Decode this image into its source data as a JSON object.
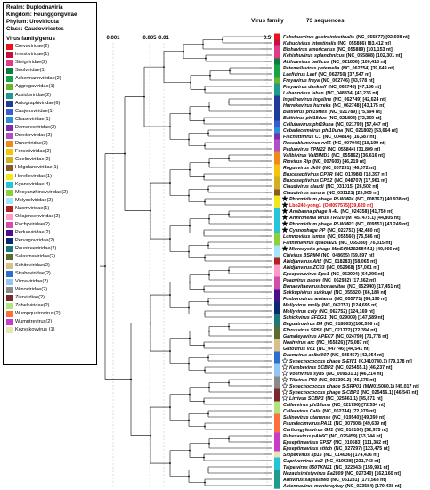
{
  "header": {
    "realm": "Realm: Duplodnaviria",
    "kingdom": "Kingdom: Heunggongvirae",
    "phylum": "Phylum: Uroviricota",
    "class": "Class: Caudoviricetes",
    "virus_family_genus": "Virus family/genus",
    "virus_family_col": "Virus family",
    "sequences_col": "73 sequences"
  },
  "scale_labels": [
    "0.001",
    "0.005",
    "0.01",
    "0.5"
  ],
  "legend": [
    {
      "label": "Crevaviridae(2)",
      "color": "#e8151b"
    },
    {
      "label": "Intestiviridae(1)",
      "color": "#c70e3c"
    },
    {
      "label": "Steigviridae(2)",
      "color": "#e03a8a"
    },
    {
      "label": "Soolviridae(1)",
      "color": "#0d7c3c"
    },
    {
      "label": "Ackermannviridae(2)",
      "color": "#16a34a"
    },
    {
      "label": "Aggregaviridae(1)",
      "color": "#6ab42f"
    },
    {
      "label": "Assiduviridae(2)",
      "color": "#1c9b8e"
    },
    {
      "label": "Autographiviridae(6)",
      "color": "#1f3c9b"
    },
    {
      "label": "Casjensviridae(1)",
      "color": "#3b5ad6"
    },
    {
      "label": "Chaseviridae(1)",
      "color": "#2a8fd6"
    },
    {
      "label": "Demerecviridae(2)",
      "color": "#7b2fb0"
    },
    {
      "label": "Drexlerviridae(2)",
      "color": "#b04fc8"
    },
    {
      "label": "Duneviridae(2)",
      "color": "#f08a1a"
    },
    {
      "label": "Forsetiviridae(2)",
      "color": "#f5c40f"
    },
    {
      "label": "Guelinviridae(2)",
      "color": "#d1b21e"
    },
    {
      "label": "Helgolandviridae(1)",
      "color": "#8b5a2b"
    },
    {
      "label": "Herelleviridae(1)",
      "color": "#f2e61c"
    },
    {
      "label": "Kyanoviridae(4)",
      "color": "#25c4d9"
    },
    {
      "label": "Mesyanzhinovviridae(2)",
      "color": "#8fcf3c"
    },
    {
      "label": "Molycolviridae(2)",
      "color": "#a3e4ff"
    },
    {
      "label": "Naomviridae(1)",
      "color": "#b22222"
    },
    {
      "label": "Orlajensenviridae(2)",
      "color": "#ff9ac8"
    },
    {
      "label": "Pachyviridae(2)",
      "color": "#d14fa8"
    },
    {
      "label": "Peduoviridae(2)",
      "color": "#4b0f8c"
    },
    {
      "label": "Pervagoviridae(2)",
      "color": "#0b2b6e"
    },
    {
      "label": "Rountreeviridae(2)",
      "color": "#1a7a7a"
    },
    {
      "label": "Salasmaviridae(2)",
      "color": "#5c6b2e"
    },
    {
      "label": "Schitoviridae(2)",
      "color": "#d9c08a"
    },
    {
      "label": "Straboviridae(2)",
      "color": "#2d6fd1"
    },
    {
      "label": "Vilmaviridae(2)",
      "color": "#93c5f5"
    },
    {
      "label": "Winoviridae(2)",
      "color": "#8a8a8a"
    },
    {
      "label": "Ziervirdiae(2)",
      "color": "#7a2a2a"
    },
    {
      "label": "Zobellviridae(2)",
      "color": "#b0e57c"
    },
    {
      "label": "Wumpquatrovirus(2)",
      "color": "#ff6f3c"
    },
    {
      "label": "Wumptrevirus(2)",
      "color": "#c83cc8"
    },
    {
      "label": "Kozyakovvirus (1)",
      "color": "#e6e6b0"
    }
  ],
  "tips": [
    {
      "name": "Fohxhuevirus gastrointestinalis",
      "acc": "(NC_055877) [92,608 nt]",
      "color": "#e8151b"
    },
    {
      "name": "Kahucivirus intestinalis",
      "acc": "(NC_055886) [83,412 nt]",
      "color": "#c70e3c"
    },
    {
      "name": "Blohavirus americanus",
      "acc": "(NC_055889) [101,153 nt]",
      "color": "#e03a8a"
    },
    {
      "name": "Kehishuvirus splanchnicus",
      "acc": "(NC_055888) [102,301 nt]",
      "color": "#e03a8a"
    },
    {
      "name": "Akihdevirus balticus",
      "acc": "(NC_021806) [100,418 nt]",
      "color": "#0d7c3c"
    },
    {
      "name": "Petemellavirus petemella",
      "acc": "(NC_062754) [39,649 nt]",
      "color": "#16a34a"
    },
    {
      "name": "Leefivirus Leef",
      "acc": "(NC_062750) [37,547 nt]",
      "color": "#16a34a"
    },
    {
      "name": "Freyavirus freya",
      "acc": "(NC_062746) [43,978 nt]",
      "color": "#6ab42f"
    },
    {
      "name": "Freyavirus dankleff",
      "acc": "(NC_062745) [47,186 nt]",
      "color": "#1c9b8e"
    },
    {
      "name": "Labanrvirus laban",
      "acc": "(NC_048834) [43,236 nt]",
      "color": "#1c9b8e"
    },
    {
      "name": "Ingelinevirus ingeline",
      "acc": "(NC_062749) [42,624 nt]",
      "color": "#1f3c9b"
    },
    {
      "name": "Hurrekevirus hurreka",
      "acc": "(NC_062748) [43,175 nt]",
      "color": "#1f3c9b"
    },
    {
      "name": "Baltivirus phi19rtes",
      "acc": "(NC_021789) [75,994 nt]",
      "color": "#1f3c9b"
    },
    {
      "name": "Baltivirus phi18dus",
      "acc": "(NC_021803) [72,369 nt]",
      "color": "#1f3c9b"
    },
    {
      "name": "Cellubavirus phi19una",
      "acc": "(NC_021799) [57,447 nt]",
      "color": "#3b5ad6"
    },
    {
      "name": "Cebadecemvirus phi10una",
      "acc": "(NC_021802) [53,664 nt]",
      "color": "#2a8fd6"
    },
    {
      "name": "Fischettivirus C1",
      "acc": "(NC_004814) [16,687 nt]",
      "color": "#7b2fb0"
    },
    {
      "name": "Rosenblumvirus rv66",
      "acc": "(NC_007046) [18,199 nt]",
      "color": "#b04fc8"
    },
    {
      "name": "Peduovirus YPM22",
      "acc": "(NC_055844) [31,809 nt]",
      "color": "#b04fc8"
    },
    {
      "name": "Vallbivirus ValBIMD1",
      "acc": "(NC_055862) [36,616 nt]",
      "color": "#f08a1a"
    },
    {
      "name": "Ripvirus Rip",
      "acc": "(NC_007603) [46,219 nt]",
      "color": "#f08a1a"
    },
    {
      "name": "Roguevirus Jk06",
      "acc": "(NC_007291) [46,072 nt]",
      "color": "#f5c40f"
    },
    {
      "name": "Bruceseptivirus CP7R",
      "acc": "(NC_017980) [18,397 nt]",
      "color": "#f5c40f"
    },
    {
      "name": "Bruceseptivirus CPS2",
      "acc": "(NC_048707) [17,961 nt]",
      "color": "#d1b21e"
    },
    {
      "name": "Claudivirus claudi",
      "acc": "(NC_031015) [26,502 nt]",
      "color": "#d1b21e"
    },
    {
      "name": "Claudivirus aurora",
      "acc": "(NC_031121) [25,905 nt]",
      "color": "#8b5a2b"
    },
    {
      "name": "Phormidium phage Pf-WMP4",
      "acc": "(NC_008367) [40,938 nt]",
      "color": "#f2e61c",
      "star": "filled"
    },
    {
      "name": "Lbo240-yong1",
      "acc": "(OM097575)[39,620 nt]",
      "color": "#f2e61c",
      "star": "filled",
      "red": true
    },
    {
      "name": "Anabaena phage A-4L",
      "acc": "(NC_024358) [41,750 nt]",
      "color": "#25c4d9",
      "star": "filled"
    },
    {
      "name": "Arthronema virus TR020",
      "acc": "(MT457475.1) [44,805 nt]",
      "color": "#25c4d9",
      "star": "filled"
    },
    {
      "name": "Phormidium phage Pf-WMP3",
      "acc": "(NC_009551) [43,249 nt]",
      "color": "#25c4d9",
      "star": "filled"
    },
    {
      "name": "Cyanophage PP",
      "acc": "(NC_022751) [42,480 nt]",
      "color": "#25c4d9",
      "star": "filled"
    },
    {
      "name": "Lumnovirus lumos",
      "acc": "(NC_055560) [75,586 nt]",
      "color": "#8fcf3c"
    },
    {
      "name": "Faithunavirus quaolai20",
      "acc": "(NC_055380) [76,315 nt]",
      "color": "#8fcf3c"
    },
    {
      "name": "Microcystis phage MinSt(MZ925844.1)",
      "acc": "[49,966 nt]",
      "color": "#a3e4ff",
      "star": "filled"
    },
    {
      "name": "Chivirus BSPM4",
      "acc": "(NC_048655) [59,897 nt]",
      "color": "#a3e4ff"
    },
    {
      "name": "Abidjanvirus Alt2",
      "acc": "(NC_018283) [58,065 nt]",
      "color": "#b22222"
    },
    {
      "name": "Abidjanvirus ZC03",
      "acc": "(NC_052968) [57,061 nt]",
      "color": "#ff9ac8"
    },
    {
      "name": "Epsepenavirus Eps1",
      "acc": "(NC_052904) [64,096 nt]",
      "color": "#ff9ac8"
    },
    {
      "name": "Poagvirus paove",
      "acc": "(NC_052932) [17,362 nt]",
      "color": "#d14fa8"
    },
    {
      "name": "Bonaevitaevirus bonaevitae",
      "acc": "(NC_052940) [17,451 nt]",
      "color": "#d14fa8"
    },
    {
      "name": "Sukkupivirus sukkupi",
      "acc": "(NC_055820) [66,184 nt]",
      "color": "#4b0f8c"
    },
    {
      "name": "Foxborovirus amiamu",
      "acc": "(NC_055771) [68,190 nt]",
      "color": "#4b0f8c"
    },
    {
      "name": "Mollyvirus molly",
      "acc": "(NC_062751) [124,695 nt]",
      "color": "#0b2b6e"
    },
    {
      "name": "Mollyvirus coly",
      "acc": "(NC_062752) [124,169 nt]",
      "color": "#0b2b6e"
    },
    {
      "name": "Schickvirus EFDG1",
      "acc": "(NC_029009) [147,589 nt]",
      "color": "#1a7a7a"
    },
    {
      "name": "Beguatrovirus B4",
      "acc": "(NC_018863) [162,596 nt]",
      "color": "#1a7a7a"
    },
    {
      "name": "Elbrusvirus SP58",
      "acc": "(NC_021772) [72,394 nt]",
      "color": "#5c6b2e"
    },
    {
      "name": "Gamaleyavirus APEC7",
      "acc": "(NC_024790) [71,778 nt]",
      "color": "#5c6b2e"
    },
    {
      "name": "Noahvirus arc",
      "acc": "(NC_055826) [75,087 nt]",
      "color": "#d9c08a"
    },
    {
      "name": "Gutovirus Vc1",
      "acc": "(NC_047746) [44,541 nt]",
      "color": "#d9c08a"
    },
    {
      "name": "Daemvirus aclbd007",
      "acc": "(NC_025457) [42,054 nt]",
      "color": "#2d6fd1"
    },
    {
      "name": "Synechococcus phage S-EIV1",
      "acc": "(KJ410740.1) [79,178 nt]",
      "color": "#2d6fd1",
      "star": "open"
    },
    {
      "name": "Kembevirus SCBP2",
      "acc": "(NC_025455.1) [46,237 nt]",
      "color": "#93c5f5",
      "star": "open"
    },
    {
      "name": "Voerivirus syn5",
      "acc": "(NC_009531.1) [46,214 nt]",
      "color": "#93c5f5",
      "star": "open"
    },
    {
      "name": "Tiilvirus P60",
      "acc": "(NC_003390.2) [46,675 nt]",
      "color": "#8a8a8a",
      "star": "open"
    },
    {
      "name": "Synechococcus phage S-SRP01",
      "acc": "(MW015080.1) [45,017 nt]",
      "color": "#8a8a8a",
      "star": "open"
    },
    {
      "name": "Synechococcus phage S-CBP1",
      "acc": "(NC_025456.1) [46,547 nt]",
      "color": "#7a2a2a",
      "star": "open"
    },
    {
      "name": "Lirrivus SCBP3",
      "acc": "(NC_025461.1) [45,871 nt]",
      "color": "#7a2a2a",
      "star": "open"
    },
    {
      "name": "Calleevirus phi18una",
      "acc": "(NC_021796) [72,534 nt]",
      "color": "#b0e57c"
    },
    {
      "name": "Calleevirus Calle",
      "acc": "(NC_062744) [72,979 nt]",
      "color": "#b0e57c"
    },
    {
      "name": "Salinovirus utanense",
      "acc": "(NC_019540) [49,390 nt]",
      "color": "#ff6f3c"
    },
    {
      "name": "Paundecimvirus PA11",
      "acc": "(NC_007808) [49,639 nt]",
      "color": "#ff6f3c"
    },
    {
      "name": "Carltongylesvirus GJ1",
      "acc": "(NC_010106) [52,975 nt]",
      "color": "#ff6f3c"
    },
    {
      "name": "Pahexavirus pAh6C",
      "acc": "(NC_025459) [53,744 nt]",
      "color": "#c83cc8"
    },
    {
      "name": "Epseptimavirus EPS7",
      "acc": "(NC_010583) [111,382 nt]",
      "color": "#c83cc8"
    },
    {
      "name": "Epseptimavirus stitch",
      "acc": "(NC_027297) [123,475 nt]",
      "color": "#c83cc8"
    },
    {
      "name": "Slopekvirus kp15",
      "acc": "(NC_014036) [174,436 nt]",
      "color": "#e6e6b0"
    },
    {
      "name": "Gaprivervirus cc2",
      "acc": "(NC_019538) [231,743 nt]",
      "color": "#25c4d9"
    },
    {
      "name": "Taipeivirus 050TKN21",
      "acc": "(NC_022343) [159,991 nt]",
      "color": "#25c4d9"
    },
    {
      "name": "Nezavisimistyvirus Ea2809",
      "acc": "(NC_027340) [162,160 nt]",
      "color": "#1c9b8e"
    },
    {
      "name": "Ahtivirus sagseatwo",
      "acc": "(NC_051281) [179,563 nt]",
      "color": "#1c9b8e"
    },
    {
      "name": "Acionnavirus monteraybay",
      "acc": "(NC_023584) [170,438 nt]",
      "color": "#1c9b8e"
    }
  ]
}
